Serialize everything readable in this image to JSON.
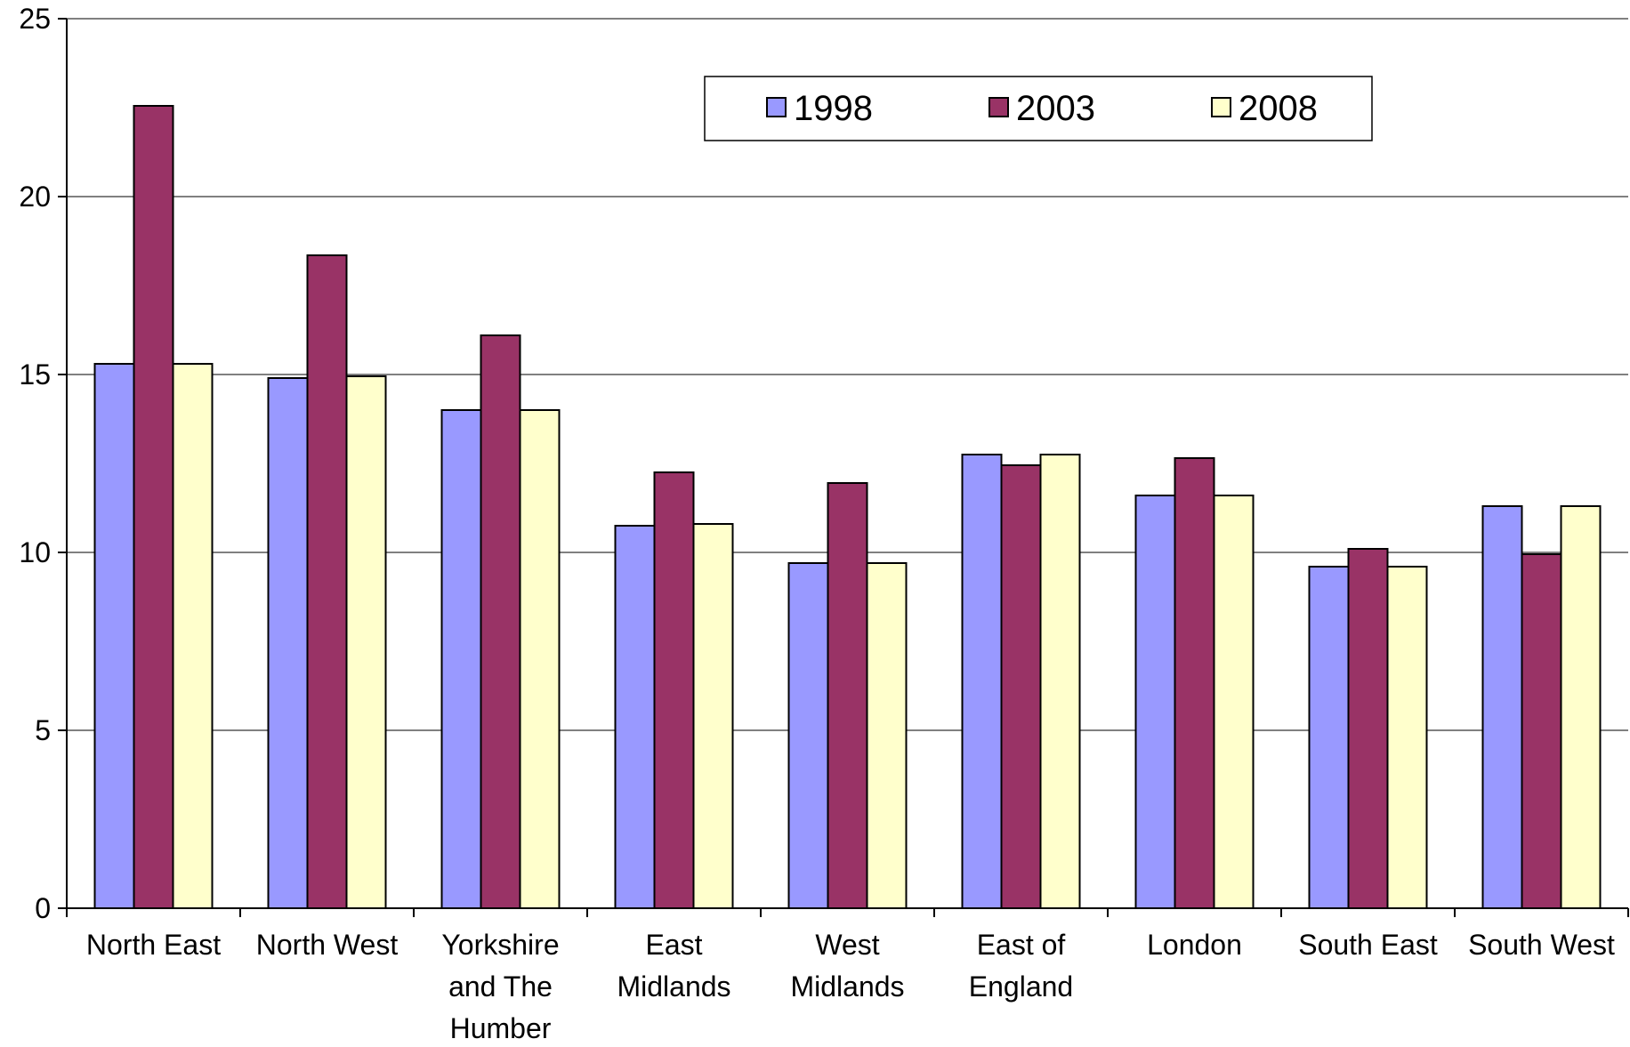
{
  "chart_data": {
    "type": "bar",
    "title": "",
    "xlabel": "",
    "ylabel": "",
    "ylim": [
      0,
      25
    ],
    "yticks": [
      "0",
      "5",
      "10",
      "15",
      "20",
      "25"
    ],
    "grid": true,
    "legend_position": "top-center",
    "categories": [
      [
        "North East"
      ],
      [
        "North West"
      ],
      [
        "Yorkshire",
        "and The",
        "Humber"
      ],
      [
        "East",
        "Midlands"
      ],
      [
        "West",
        "Midlands"
      ],
      [
        "East of",
        "England"
      ],
      [
        "London"
      ],
      [
        "South East"
      ],
      [
        "South West"
      ]
    ],
    "series": [
      {
        "name": "1998",
        "color": "#9999ff",
        "values": [
          15.3,
          14.9,
          14.0,
          10.75,
          9.7,
          12.75,
          11.6,
          9.6,
          11.3
        ]
      },
      {
        "name": "2003",
        "color": "#993366",
        "values": [
          22.55,
          18.35,
          16.1,
          12.25,
          11.95,
          12.45,
          12.65,
          10.1,
          9.95
        ]
      },
      {
        "name": "2008",
        "color": "#ffffcc",
        "values": [
          15.3,
          14.95,
          14.0,
          10.8,
          9.7,
          12.75,
          11.6,
          9.6,
          11.3
        ]
      }
    ]
  }
}
